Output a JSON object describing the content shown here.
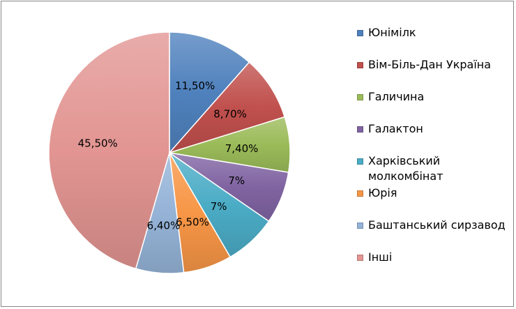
{
  "chart_data": {
    "type": "pie",
    "title": "",
    "unit": "%",
    "legend_position": "right",
    "start_angle": "12 o'clock, clockwise",
    "categories": [
      "Юнімілк",
      "Вім-Біль-Дан Україна",
      "Галичина",
      "Галактон",
      "Харківський\nмолкомбінат",
      "Юрія",
      "Баштанський сирзавод",
      "Інші"
    ],
    "values": [
      11.5,
      8.7,
      7.4,
      7,
      7,
      6.5,
      6.4,
      45.5
    ],
    "data_labels": [
      "11,50%",
      "8,70%",
      "7,40%",
      "7%",
      "7%",
      "6,50%",
      "6,40%",
      "45,50%"
    ],
    "colors": [
      "#4f81bd",
      "#c0504d",
      "#9bbb59",
      "#8064a2",
      "#4bacc6",
      "#f79646",
      "#95b3d7",
      "#e29592"
    ]
  }
}
